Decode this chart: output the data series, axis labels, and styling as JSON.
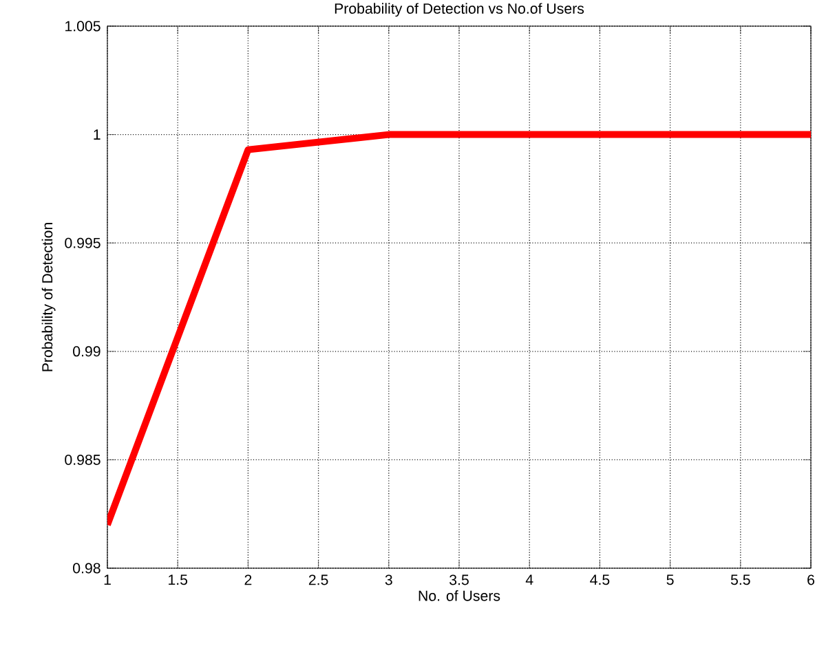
{
  "chart_data": {
    "type": "line",
    "title": "Probability of  Detection vs No.of Users",
    "xlabel": "No. of Users",
    "ylabel": "Probability of Detection",
    "x": [
      1,
      2,
      3,
      4,
      5,
      6
    ],
    "series": [
      {
        "color": "#ff0000",
        "values": [
          0.982,
          0.9993,
          1,
          1,
          1,
          1
        ]
      }
    ],
    "xlim": [
      1,
      6
    ],
    "xticks": [
      1,
      1.5,
      2,
      2.5,
      3,
      3.5,
      4,
      4.5,
      5,
      5.5,
      6
    ],
    "ylim": [
      0.98,
      1.005
    ],
    "yticks": [
      0.98,
      0.985,
      0.99,
      0.995,
      1,
      1.005
    ],
    "grid": true,
    "marker": "none",
    "line_style": "solid"
  }
}
